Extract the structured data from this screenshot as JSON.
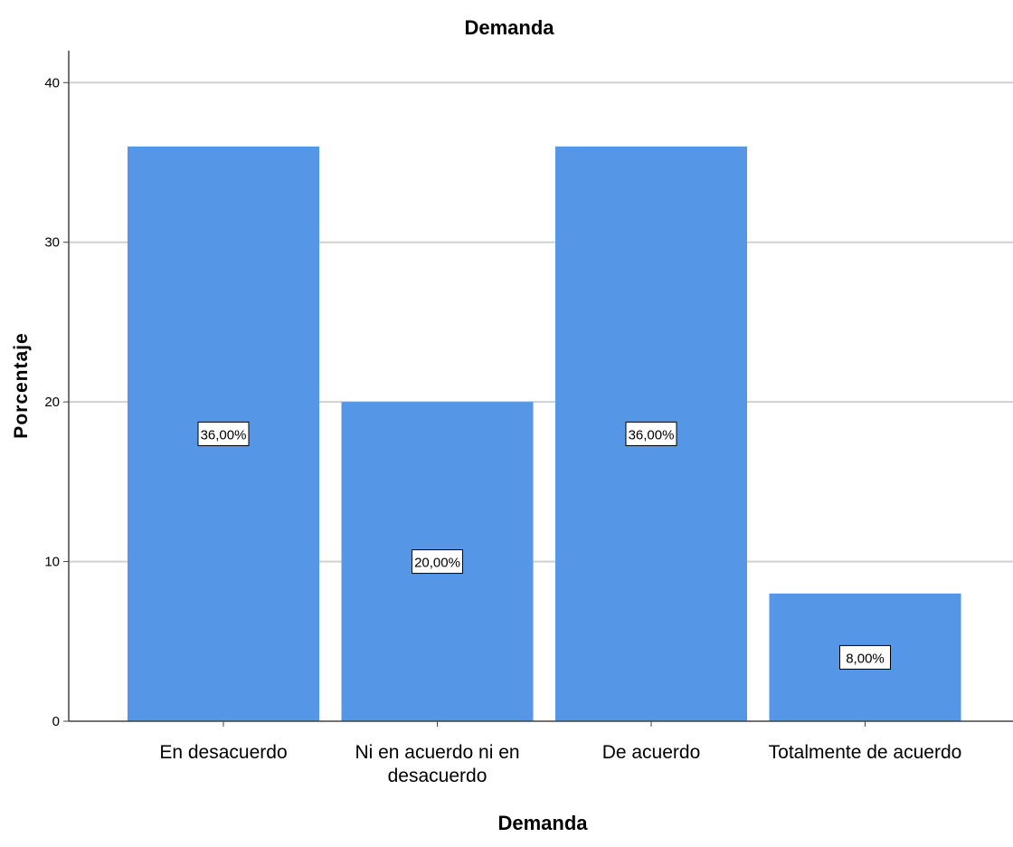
{
  "chart_data": {
    "type": "bar",
    "title": "Demanda",
    "xlabel": "Demanda",
    "ylabel": "Porcentaje",
    "categories": [
      [
        "En desacuerdo"
      ],
      [
        "Ni en acuerdo ni en",
        "desacuerdo"
      ],
      [
        "De acuerdo"
      ],
      [
        "Totalmente de acuerdo"
      ]
    ],
    "values": [
      36,
      20,
      36,
      8
    ],
    "data_labels": [
      "36,00%",
      "20,00%",
      "36,00%",
      "8,00%"
    ],
    "yticks": [
      0,
      10,
      20,
      30,
      40
    ],
    "ylim": [
      0,
      42
    ],
    "grid": true,
    "bar_color": "#5596e6",
    "grid_color": "#d0d0d0",
    "axis_color": "#444444"
  }
}
